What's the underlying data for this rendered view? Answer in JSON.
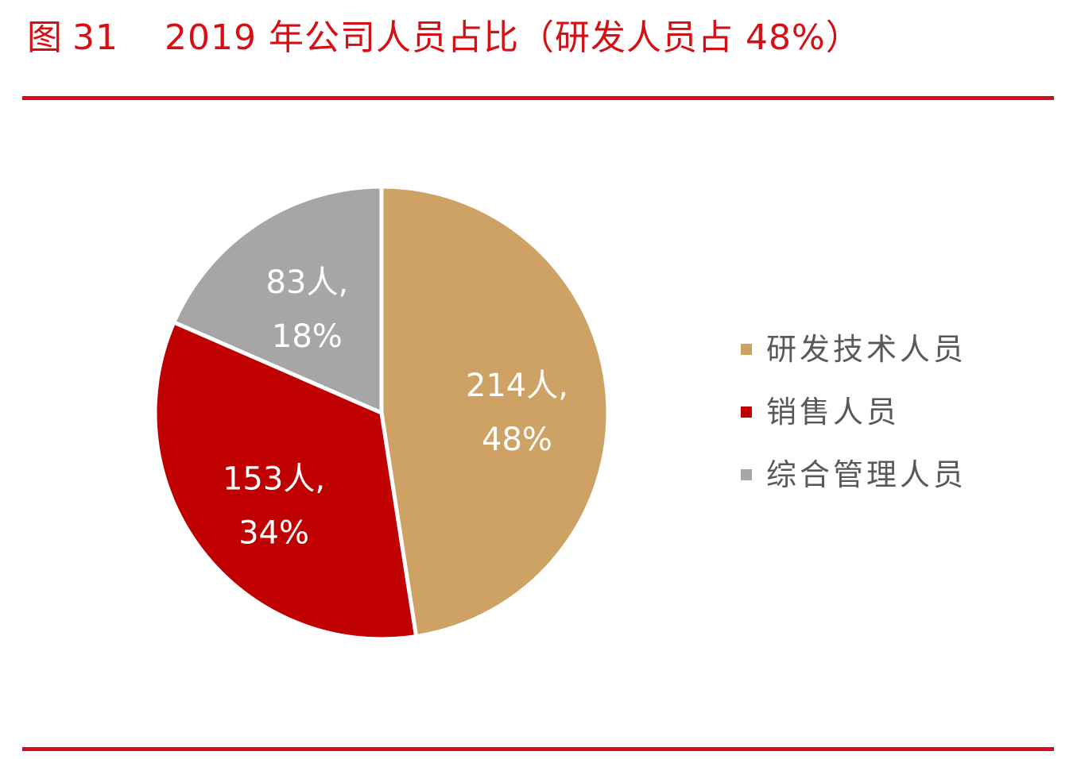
{
  "figure": {
    "label": "图",
    "number": "31",
    "title": "2019 年公司人员占比（研发人员占 48%）"
  },
  "chart_data": {
    "type": "pie",
    "title": "2019 年公司人员占比（研发人员占 48%）",
    "legend_position": "right",
    "slices": [
      {
        "name": "研发技术人员",
        "value": 214,
        "percent": 48,
        "label_line1": "214人,",
        "label_line2": "48%",
        "color": "#cda264"
      },
      {
        "name": "销售人员",
        "value": 153,
        "percent": 34,
        "label_line1": "153人,",
        "label_line2": "34%",
        "color": "#c00000"
      },
      {
        "name": "综合管理人员",
        "value": 83,
        "percent": 18,
        "label_line1": "83人,",
        "label_line2": "18%",
        "color": "#a6a6a6"
      }
    ]
  }
}
